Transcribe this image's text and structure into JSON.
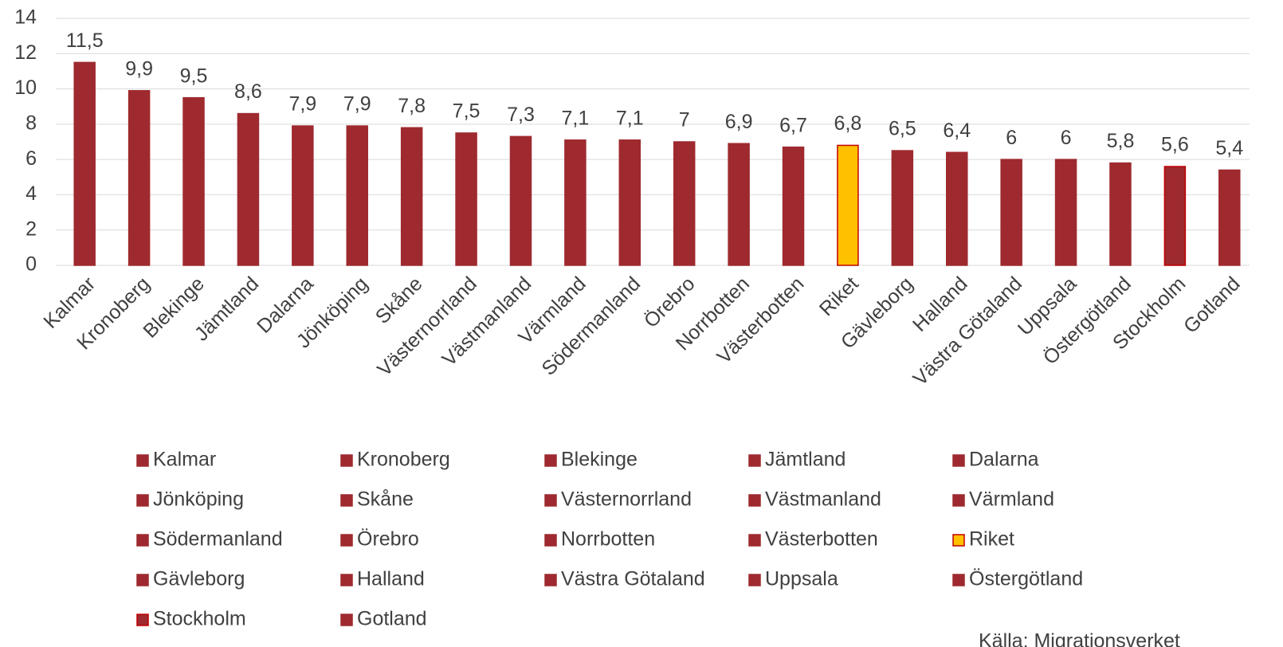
{
  "chart_data": {
    "type": "bar",
    "categories": [
      "Kalmar",
      "Kronoberg",
      "Blekinge",
      "Jämtland",
      "Dalarna",
      "Jönköping",
      "Skåne",
      "Västernorrland",
      "Västmanland",
      "Värmland",
      "Södermanland",
      "Örebro",
      "Norrbotten",
      "Västerbotten",
      "Riket",
      "Gävleborg",
      "Halland",
      "Västra Götaland",
      "Uppsala",
      "Östergötland",
      "Stockholm",
      "Gotland"
    ],
    "values": [
      11.5,
      9.9,
      9.5,
      8.6,
      7.9,
      7.9,
      7.8,
      7.5,
      7.3,
      7.1,
      7.1,
      7,
      6.9,
      6.7,
      6.8,
      6.5,
      6.4,
      6,
      6,
      5.8,
      5.6,
      5.4
    ],
    "value_labels": [
      "11,5",
      "9,9",
      "9,5",
      "8,6",
      "7,9",
      "7,9",
      "7,8",
      "7,5",
      "7,3",
      "7,1",
      "7,1",
      "7",
      "6,9",
      "6,7",
      "6,8",
      "6,5",
      "6,4",
      "6",
      "6",
      "5,8",
      "5,6",
      "5,4"
    ],
    "colors": [
      "#9e2a2f",
      "#9e2a2f",
      "#9e2a2f",
      "#9e2a2f",
      "#9e2a2f",
      "#9e2a2f",
      "#9e2a2f",
      "#9e2a2f",
      "#9e2a2f",
      "#9e2a2f",
      "#9e2a2f",
      "#9e2a2f",
      "#9e2a2f",
      "#9e2a2f",
      "#ffc000",
      "#9e2a2f",
      "#9e2a2f",
      "#9e2a2f",
      "#9e2a2f",
      "#9e2a2f",
      "#9e2a2f",
      "#9e2a2f"
    ],
    "edgecolors": [
      "#9e2a2f",
      "#9e2a2f",
      "#9e2a2f",
      "#9e2a2f",
      "#9e2a2f",
      "#9e2a2f",
      "#9e2a2f",
      "#9e2a2f",
      "#9e2a2f",
      "#9e2a2f",
      "#9e2a2f",
      "#9e2a2f",
      "#9e2a2f",
      "#9e2a2f",
      "#c00000",
      "#9e2a2f",
      "#9e2a2f",
      "#9e2a2f",
      "#9e2a2f",
      "#9e2a2f",
      "#c00000",
      "#9e2a2f"
    ],
    "ylim": [
      0,
      14
    ],
    "yticks": [
      0,
      2,
      4,
      6,
      8,
      10,
      12,
      14
    ],
    "grid": true,
    "legend": "bottom",
    "source": "Källa: Migrationsverket"
  }
}
